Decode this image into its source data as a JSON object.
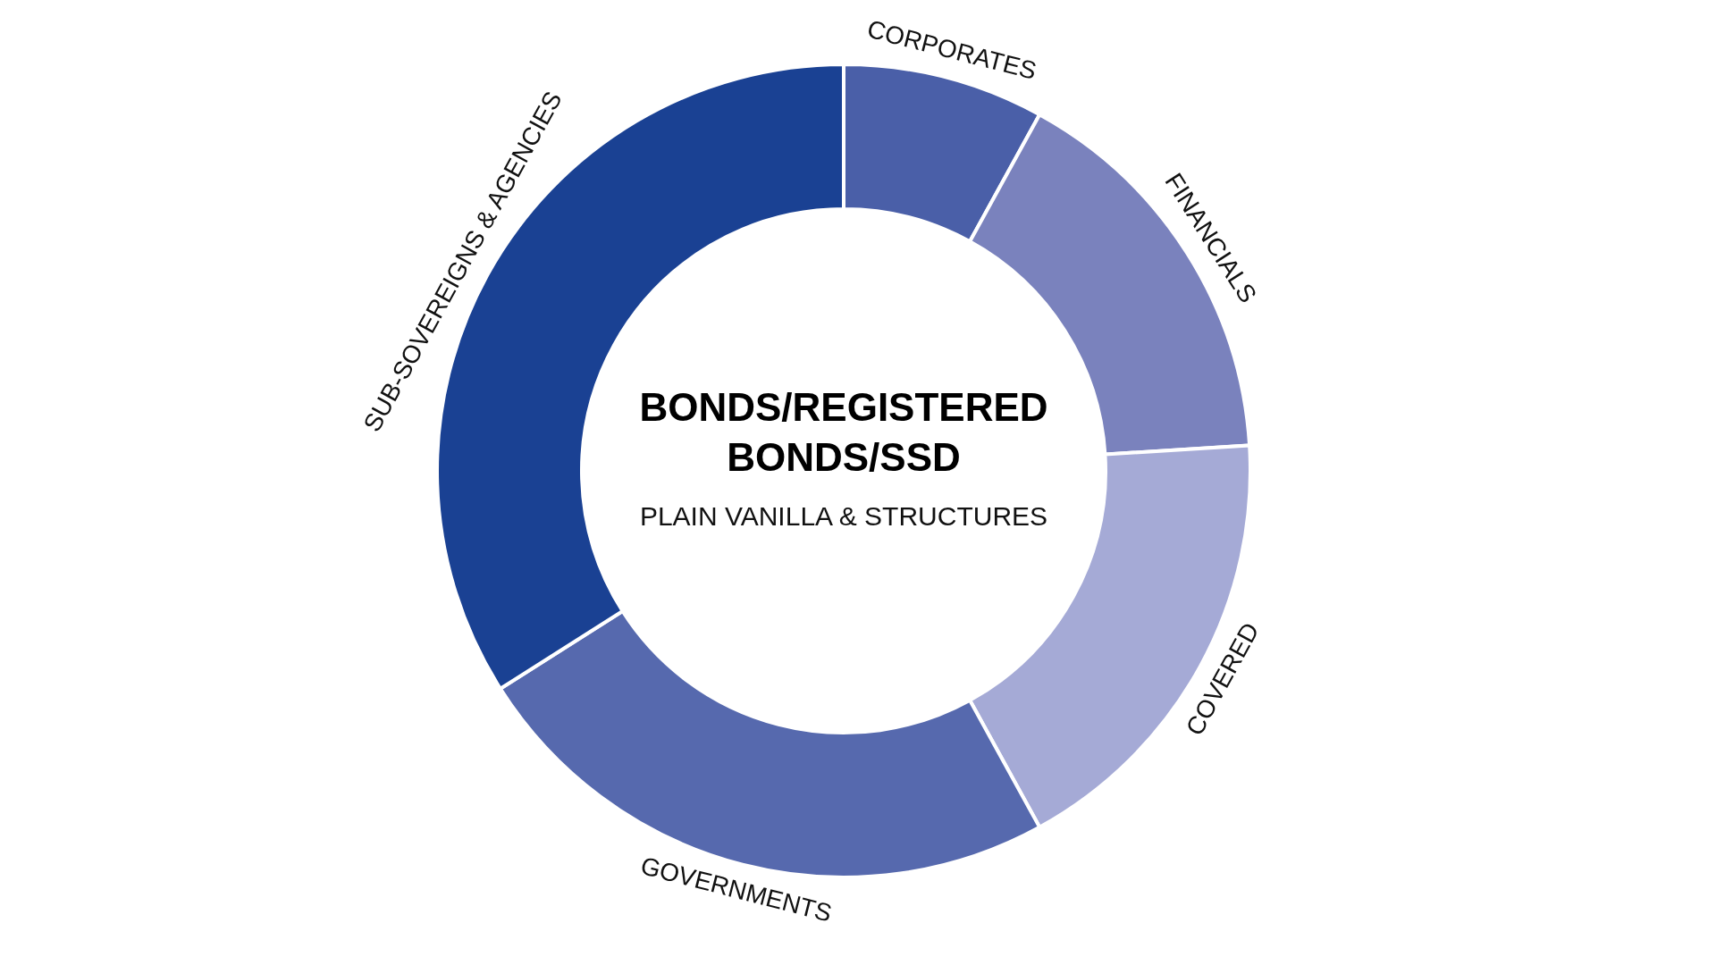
{
  "chart_data": {
    "type": "donut",
    "title": "BONDS/REGISTERED BONDS/SSD",
    "subtitle": "PLAIN VANILLA & STRUCTURES",
    "categories": [
      "CORPORATES",
      "FINANCIALS",
      "COVERED",
      "GOVERNMENTS",
      "SUB-SOVEREIGNS & AGENCIES"
    ],
    "values": [
      8,
      16,
      18,
      24,
      34
    ],
    "colors": [
      "#4a5fa8",
      "#7a82bd",
      "#a5aad6",
      "#5669ae",
      "#1a4193"
    ]
  }
}
